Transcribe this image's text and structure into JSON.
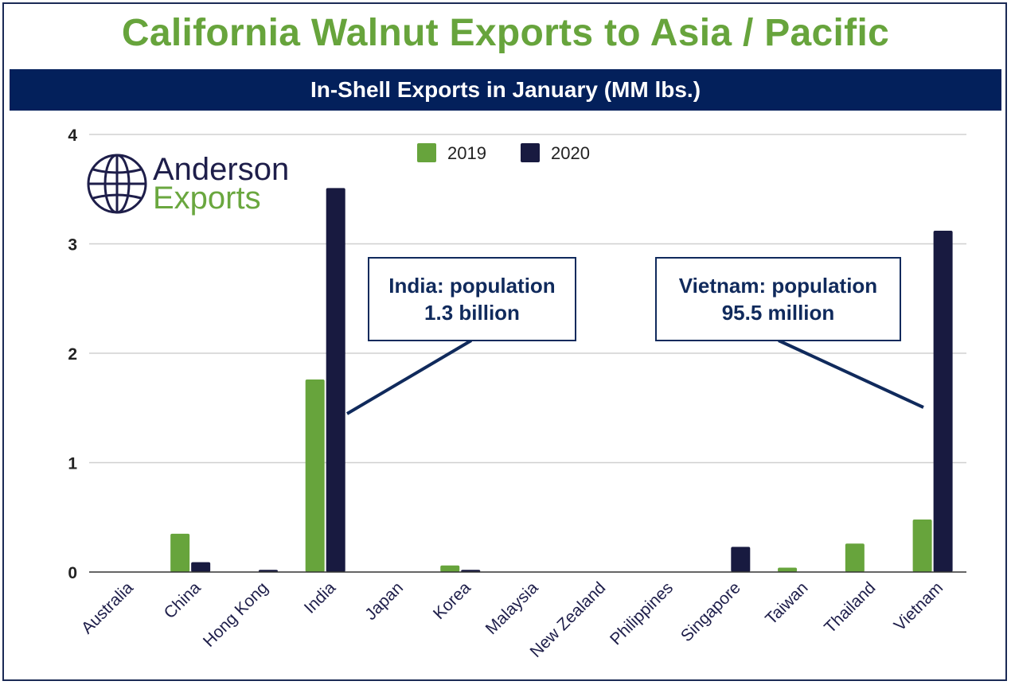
{
  "title": "California Walnut Exports to Asia / Pacific",
  "subtitle": "In-Shell Exports in January (MM lbs.)",
  "logo": {
    "line1": "Anderson",
    "line2": "Exports",
    "icon": "globe-icon"
  },
  "colors": {
    "title": "#67a43c",
    "subtitle_bg": "#03205b",
    "series_2019": "#67a43c",
    "series_2020": "#181a40",
    "callout": "#102a5c"
  },
  "callouts": {
    "india": {
      "line1": "India: population",
      "line2": "1.3 billion"
    },
    "vietnam": {
      "line1": "Vietnam: population",
      "line2": "95.5 million"
    }
  },
  "chart_data": {
    "type": "bar",
    "categories": [
      "Australia",
      "China",
      "Hong Kong",
      "India",
      "Japan",
      "Korea",
      "Malaysia",
      "New Zealand",
      "Philippines",
      "Singapore",
      "Taiwan",
      "Thailand",
      "Vietnam"
    ],
    "series": [
      {
        "name": "2019",
        "values": [
          0,
          0.35,
          0,
          1.76,
          0,
          0.06,
          0,
          0,
          0,
          0,
          0.04,
          0.26,
          0.48
        ]
      },
      {
        "name": "2020",
        "values": [
          0,
          0.09,
          0.02,
          3.51,
          0,
          0.02,
          0,
          0,
          0,
          0.23,
          0,
          0,
          3.12
        ]
      }
    ],
    "ylim": [
      0,
      4
    ],
    "yticks": [
      "0",
      "1",
      "2",
      "3",
      "4"
    ],
    "grid": true,
    "legend": "top-center"
  }
}
